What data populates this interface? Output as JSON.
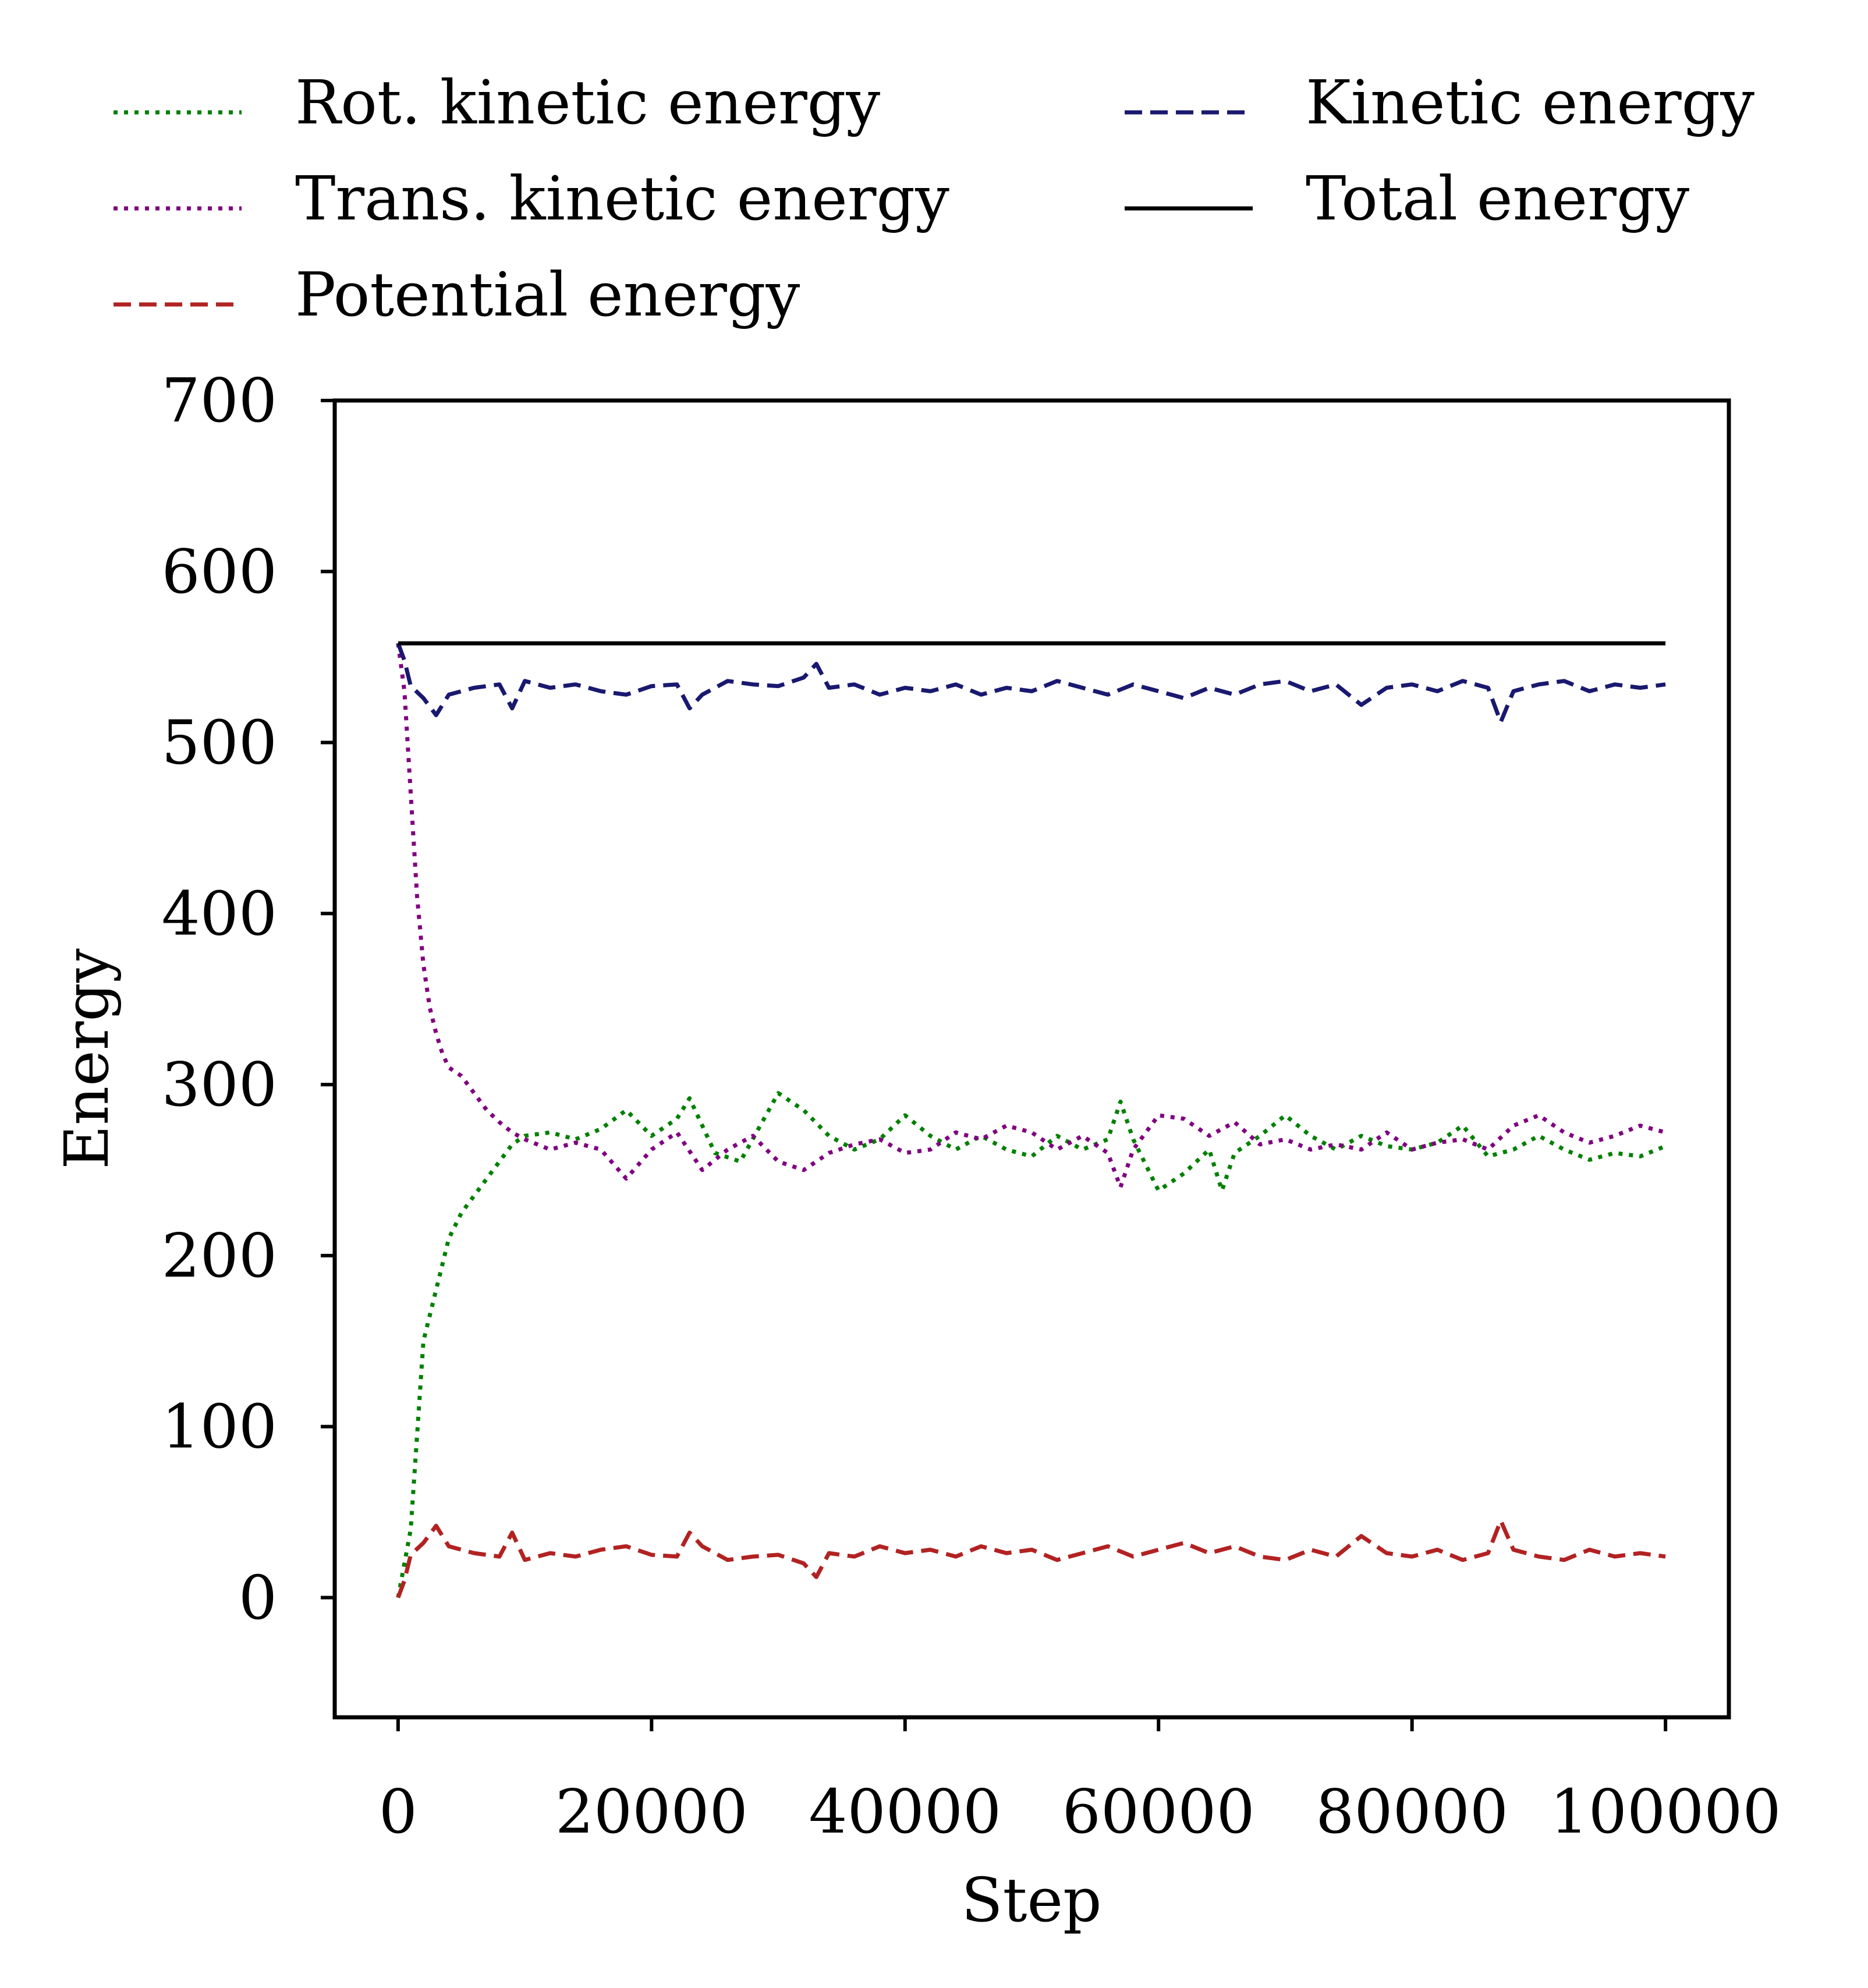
{
  "chart_data": {
    "type": "line",
    "xlabel": "Step",
    "ylabel": "Energy",
    "xlim": [
      -5000,
      105000
    ],
    "ylim": [
      -70,
      700
    ],
    "xticks": [
      0,
      20000,
      40000,
      60000,
      80000,
      100000
    ],
    "xtick_labels": [
      "0",
      "20000",
      "40000",
      "60000",
      "80000",
      "100000"
    ],
    "yticks": [
      0,
      100,
      200,
      300,
      400,
      500,
      600,
      700
    ],
    "ytick_labels": [
      "0",
      "100",
      "200",
      "300",
      "400",
      "500",
      "600",
      "700"
    ],
    "grid": false,
    "legend_position": "above plot, two columns",
    "series": [
      {
        "name": "Rot. kinetic energy",
        "color": "#008000",
        "linestyle": "dotted",
        "x": [
          0,
          1000,
          2000,
          3000,
          4000,
          5000,
          6000,
          7000,
          8000,
          9000,
          10000,
          12000,
          14000,
          16000,
          18000,
          20000,
          22000,
          23000,
          25000,
          27000,
          30000,
          32000,
          34000,
          36000,
          38000,
          40000,
          42000,
          44000,
          46000,
          48000,
          50000,
          52000,
          54000,
          56000,
          57000,
          58000,
          60000,
          62000,
          64000,
          65000,
          66000,
          68000,
          70000,
          72000,
          74000,
          76000,
          78000,
          80000,
          82000,
          84000,
          86000,
          88000,
          90000,
          92000,
          94000,
          96000,
          98000,
          100000
        ],
        "y": [
          0,
          40,
          150,
          180,
          210,
          225,
          235,
          245,
          255,
          265,
          270,
          272,
          268,
          274,
          285,
          270,
          280,
          292,
          260,
          255,
          295,
          285,
          270,
          262,
          268,
          282,
          270,
          262,
          270,
          262,
          258,
          270,
          262,
          268,
          290,
          268,
          238,
          248,
          262,
          238,
          260,
          270,
          282,
          270,
          262,
          270,
          264,
          262,
          266,
          276,
          258,
          262,
          270,
          262,
          256,
          260,
          258,
          264
        ]
      },
      {
        "name": "Trans. kinetic energy",
        "color": "#800080",
        "linestyle": "dotted",
        "x": [
          0,
          500,
          1000,
          1500,
          2000,
          2500,
          3000,
          3500,
          4000,
          5000,
          6000,
          7000,
          8000,
          9000,
          10000,
          12000,
          14000,
          16000,
          18000,
          20000,
          22000,
          24000,
          26000,
          28000,
          30000,
          32000,
          34000,
          36000,
          38000,
          40000,
          42000,
          44000,
          46000,
          48000,
          50000,
          52000,
          54000,
          56000,
          57000,
          58000,
          60000,
          62000,
          64000,
          66000,
          68000,
          70000,
          72000,
          74000,
          76000,
          78000,
          80000,
          82000,
          84000,
          86000,
          88000,
          90000,
          92000,
          94000,
          96000,
          98000,
          100000
        ],
        "y": [
          558,
          530,
          470,
          410,
          370,
          345,
          330,
          318,
          310,
          305,
          295,
          285,
          278,
          272,
          268,
          262,
          266,
          262,
          245,
          262,
          272,
          250,
          262,
          270,
          255,
          250,
          260,
          265,
          268,
          260,
          262,
          272,
          268,
          276,
          272,
          262,
          270,
          260,
          240,
          262,
          282,
          280,
          270,
          278,
          265,
          268,
          262,
          265,
          262,
          272,
          262,
          266,
          268,
          262,
          276,
          282,
          272,
          266,
          270,
          276,
          272
        ]
      },
      {
        "name": "Potential energy",
        "color": "#b22222",
        "linestyle": "dashed",
        "x": [
          0,
          500,
          1000,
          2000,
          3000,
          4000,
          6000,
          8000,
          9000,
          10000,
          12000,
          14000,
          16000,
          18000,
          20000,
          22000,
          23000,
          24000,
          26000,
          28000,
          30000,
          32000,
          33000,
          34000,
          36000,
          38000,
          40000,
          42000,
          44000,
          46000,
          48000,
          50000,
          52000,
          54000,
          56000,
          58000,
          60000,
          62000,
          64000,
          66000,
          68000,
          70000,
          72000,
          74000,
          76000,
          78000,
          80000,
          82000,
          84000,
          86000,
          87000,
          88000,
          90000,
          92000,
          94000,
          96000,
          98000,
          100000
        ],
        "y": [
          0,
          10,
          25,
          32,
          42,
          30,
          26,
          24,
          38,
          22,
          26,
          24,
          28,
          30,
          25,
          24,
          38,
          30,
          22,
          24,
          25,
          20,
          12,
          26,
          24,
          30,
          26,
          28,
          24,
          30,
          26,
          28,
          22,
          26,
          30,
          24,
          28,
          32,
          26,
          30,
          24,
          22,
          28,
          24,
          36,
          26,
          24,
          28,
          22,
          26,
          45,
          28,
          24,
          22,
          28,
          24,
          26,
          24
        ]
      },
      {
        "name": "Kinetic energy",
        "color": "#191970",
        "linestyle": "dashed",
        "x": [
          0,
          500,
          1000,
          2000,
          3000,
          4000,
          6000,
          8000,
          9000,
          10000,
          12000,
          14000,
          16000,
          18000,
          20000,
          22000,
          23000,
          24000,
          26000,
          28000,
          30000,
          32000,
          33000,
          34000,
          36000,
          38000,
          40000,
          42000,
          44000,
          46000,
          48000,
          50000,
          52000,
          54000,
          56000,
          58000,
          60000,
          62000,
          64000,
          66000,
          68000,
          70000,
          72000,
          74000,
          76000,
          78000,
          80000,
          82000,
          84000,
          86000,
          87000,
          88000,
          90000,
          92000,
          94000,
          96000,
          98000,
          100000
        ],
        "y": [
          558,
          548,
          533,
          526,
          516,
          528,
          532,
          534,
          520,
          536,
          532,
          534,
          530,
          528,
          533,
          534,
          520,
          528,
          536,
          534,
          533,
          538,
          546,
          532,
          534,
          528,
          532,
          530,
          534,
          528,
          532,
          530,
          536,
          532,
          528,
          534,
          530,
          526,
          532,
          528,
          534,
          536,
          530,
          534,
          522,
          532,
          534,
          530,
          536,
          532,
          512,
          530,
          534,
          536,
          530,
          534,
          532,
          534
        ]
      },
      {
        "name": "Total energy",
        "color": "#000000",
        "linestyle": "solid",
        "x": [
          0,
          100000
        ],
        "y": [
          558,
          558
        ]
      }
    ]
  }
}
